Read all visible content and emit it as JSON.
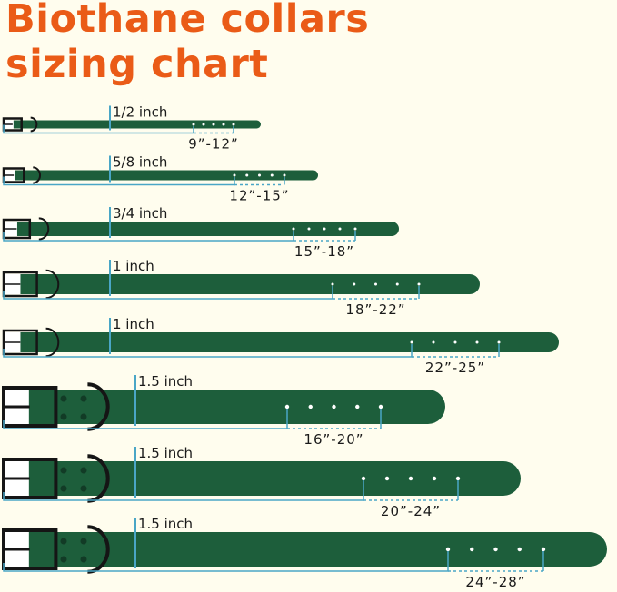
{
  "title": {
    "line1": "Biothane collars",
    "line2": "sizing chart"
  },
  "colors": {
    "title": "#ea5b17",
    "strap": "#1d5e3b",
    "measure": "#4aa6c6",
    "hardware": "#151515",
    "background": "#fffdee"
  },
  "collars": [
    {
      "width_label": "1/2 inch",
      "size_label": "9”-12”"
    },
    {
      "width_label": "5/8 inch",
      "size_label": "12”-15”"
    },
    {
      "width_label": "3/4 inch",
      "size_label": "15”-18”"
    },
    {
      "width_label": "1 inch",
      "size_label": "18”-22”"
    },
    {
      "width_label": "1 inch",
      "size_label": "22”-25”"
    },
    {
      "width_label": "1.5 inch",
      "size_label": "16”-20”"
    },
    {
      "width_label": "1.5 inch",
      "size_label": "20”-24”"
    },
    {
      "width_label": "1.5 inch",
      "size_label": "24”-28”"
    }
  ]
}
